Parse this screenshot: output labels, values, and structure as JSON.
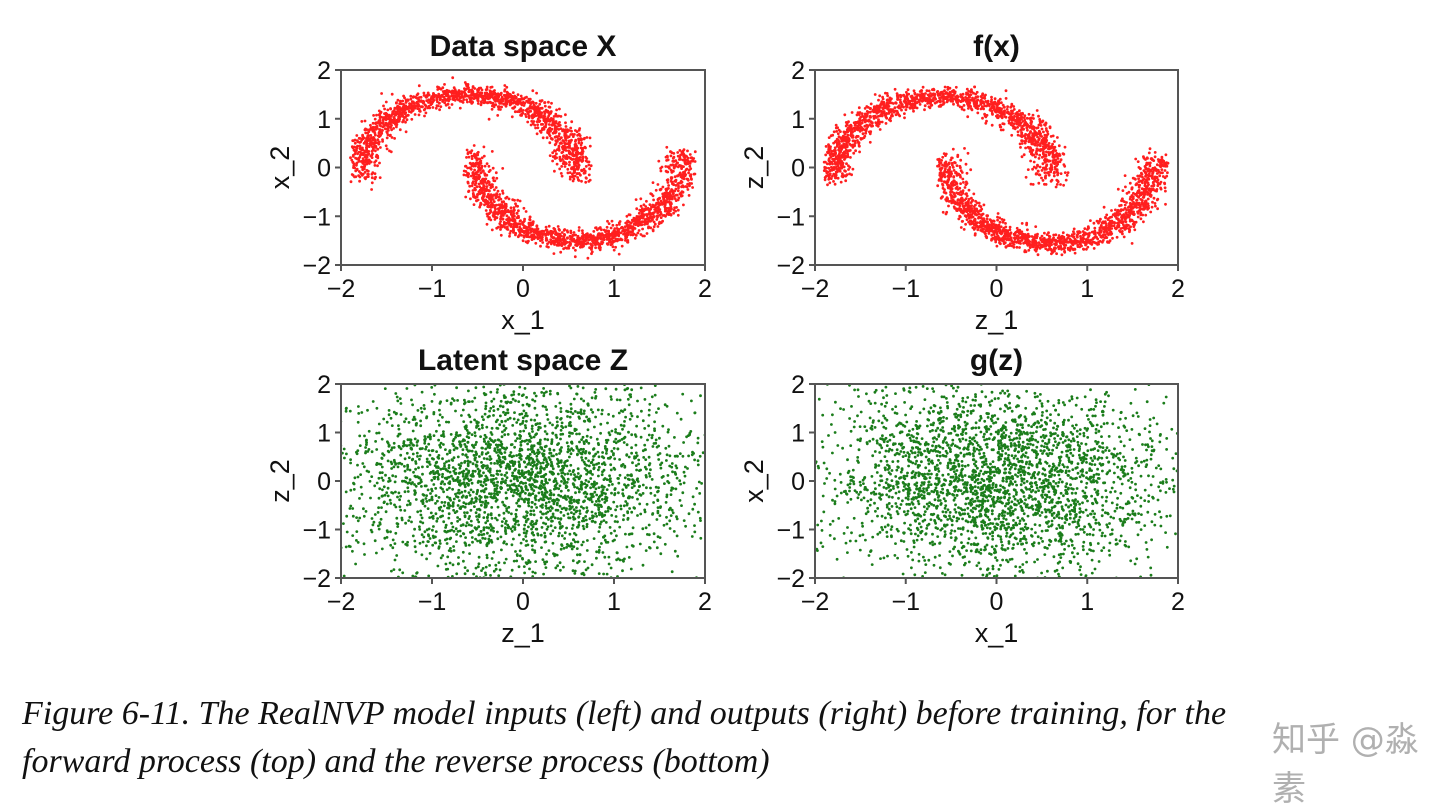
{
  "chart_data": [
    {
      "type": "scatter",
      "title": "Data space X",
      "xlabel": "x_1",
      "ylabel": "x_2",
      "xlim": [
        -2,
        2
      ],
      "ylim": [
        -2,
        2
      ],
      "xticks": [
        "-2",
        "-1",
        "0",
        "1",
        "2"
      ],
      "yticks": [
        "-2",
        "-1",
        "0",
        "1",
        "2"
      ],
      "color": "#ff1f1f",
      "distribution": "two interleaved moons",
      "moons": [
        {
          "center": [
            -0.6,
            -0.2
          ],
          "radius": [
            1.2,
            1.7
          ],
          "arc": "upper",
          "from_x": -1.8,
          "to_x": 0.65
        },
        {
          "center": [
            0.6,
            0.3
          ],
          "radius": [
            1.15,
            1.8
          ],
          "arc": "lower",
          "from_x": -0.55,
          "to_x": 1.8
        }
      ],
      "noise": 0.1
    },
    {
      "type": "scatter",
      "title": "f(x)",
      "xlabel": "z_1",
      "ylabel": "z_2",
      "xlim": [
        -2,
        2
      ],
      "ylim": [
        -2,
        2
      ],
      "xticks": [
        "-2",
        "-1",
        "0",
        "1",
        "2"
      ],
      "yticks": [
        "-2",
        "-1",
        "0",
        "1",
        "2"
      ],
      "color": "#ff1f1f",
      "distribution": "two interleaved moons",
      "moons": [
        {
          "center": [
            -0.6,
            -0.25
          ],
          "radius": [
            1.2,
            1.7
          ],
          "arc": "upper",
          "from_x": -1.8,
          "to_x": 0.7
        },
        {
          "center": [
            0.6,
            0.2
          ],
          "radius": [
            1.15,
            1.75
          ],
          "arc": "lower",
          "from_x": -0.55,
          "to_x": 1.8
        }
      ],
      "noise": 0.1
    },
    {
      "type": "scatter",
      "title": "Latent space Z",
      "xlabel": "z_1",
      "ylabel": "z_2",
      "xlim": [
        -2,
        2
      ],
      "ylim": [
        -2,
        2
      ],
      "xticks": [
        "-2",
        "-1",
        "0",
        "1",
        "2"
      ],
      "yticks": [
        "-2",
        "-1",
        "0",
        "1",
        "2"
      ],
      "color": "#1b7d1b",
      "distribution": "standard normal",
      "mean": [
        0,
        0
      ],
      "std": [
        1,
        1
      ]
    },
    {
      "type": "scatter",
      "title": "g(z)",
      "xlabel": "x_1",
      "ylabel": "x_2",
      "xlim": [
        -2,
        2
      ],
      "ylim": [
        -2,
        2
      ],
      "xticks": [
        "-2",
        "-1",
        "0",
        "1",
        "2"
      ],
      "yticks": [
        "-2",
        "-1",
        "0",
        "1",
        "2"
      ],
      "color": "#1b7d1b",
      "distribution": "standard normal",
      "mean": [
        0,
        0
      ],
      "std": [
        1,
        1
      ]
    }
  ],
  "caption": {
    "line1": "Figure 6-11. The RealNVP model inputs (left) and outputs (right) before training, for the",
    "line2": "forward process (top) and the reverse process (bottom)"
  },
  "watermark": "知乎 @淼素"
}
